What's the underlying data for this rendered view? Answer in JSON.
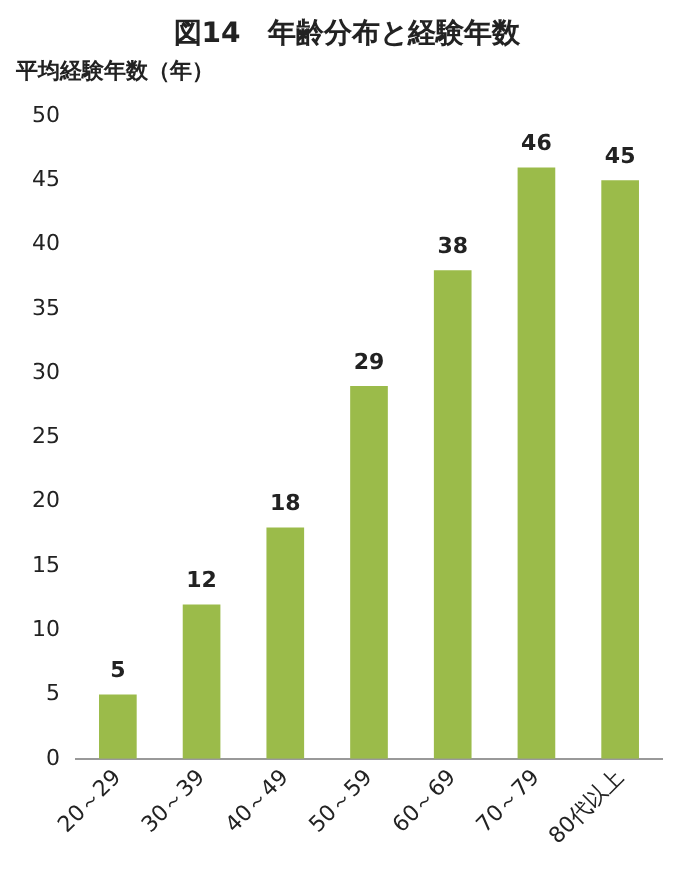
{
  "chart_data": {
    "type": "bar",
    "title": "図14　年齢分布と経験年数",
    "ylabel": "平均経験年数（年）",
    "categories": [
      "20～29",
      "30～39",
      "40～49",
      "50～59",
      "60～69",
      "70～79",
      "80代以上"
    ],
    "values": [
      5,
      12,
      18,
      29,
      38,
      46,
      45
    ],
    "color": "#9bbb4a",
    "ylim": [
      0,
      50
    ],
    "yticks": [
      0,
      5,
      10,
      15,
      20,
      25,
      30,
      35,
      40,
      45,
      50
    ],
    "grid": false,
    "legend": false,
    "data_labels": true
  }
}
